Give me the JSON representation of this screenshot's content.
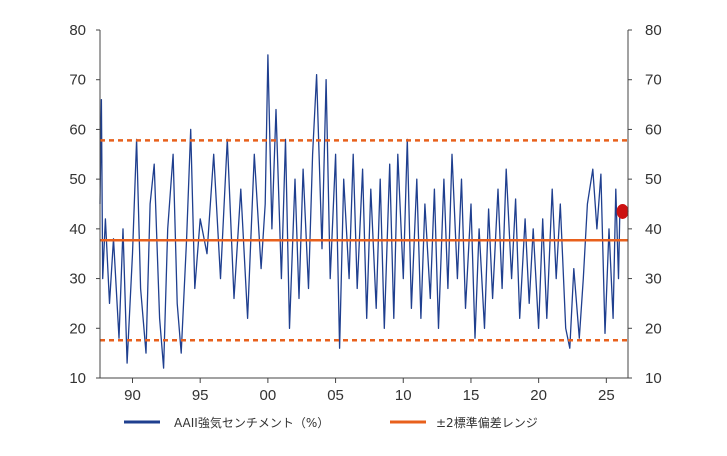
{
  "chart_data": {
    "type": "line",
    "title": "",
    "xlabel": "",
    "ylabel": "",
    "x_range": [
      1987.6,
      2026.6
    ],
    "ylim": [
      10,
      80
    ],
    "y_ticks": [
      10,
      20,
      30,
      40,
      50,
      60,
      70,
      80
    ],
    "y_tick_labels": [
      "10",
      "20",
      "30",
      "40",
      "50",
      "60",
      "70",
      "80"
    ],
    "x_ticks": [
      1990,
      1995,
      2000,
      2005,
      2010,
      2015,
      2020,
      2025
    ],
    "x_tick_labels": [
      "90",
      "95",
      "00",
      "05",
      "10",
      "15",
      "20",
      "25"
    ],
    "grid": false,
    "legend_position": "bottom",
    "legend": [
      "AAII強気センチメント（%）",
      "±2標準偏差レンジ"
    ],
    "series": [
      {
        "name": "AAII強気センチメント（%）",
        "color": "#1f3f8f",
        "points": [
          [
            1987.6,
            45
          ],
          [
            1987.7,
            66
          ],
          [
            1987.8,
            30
          ],
          [
            1988.0,
            42
          ],
          [
            1988.3,
            25
          ],
          [
            1988.6,
            38
          ],
          [
            1989.0,
            18
          ],
          [
            1989.3,
            40
          ],
          [
            1989.6,
            13
          ],
          [
            1990.0,
            35
          ],
          [
            1990.3,
            58
          ],
          [
            1990.6,
            28
          ],
          [
            1991.0,
            15
          ],
          [
            1991.3,
            45
          ],
          [
            1991.6,
            53
          ],
          [
            1992.0,
            22
          ],
          [
            1992.3,
            12
          ],
          [
            1992.6,
            40
          ],
          [
            1993.0,
            55
          ],
          [
            1993.3,
            25
          ],
          [
            1993.6,
            15
          ],
          [
            1994.0,
            38
          ],
          [
            1994.3,
            60
          ],
          [
            1994.6,
            28
          ],
          [
            1995.0,
            42
          ],
          [
            1995.5,
            35
          ],
          [
            1996.0,
            55
          ],
          [
            1996.5,
            30
          ],
          [
            1997.0,
            58
          ],
          [
            1997.5,
            26
          ],
          [
            1998.0,
            48
          ],
          [
            1998.5,
            22
          ],
          [
            1999.0,
            55
          ],
          [
            1999.5,
            32
          ],
          [
            1999.8,
            45
          ],
          [
            2000.0,
            75
          ],
          [
            2000.3,
            40
          ],
          [
            2000.6,
            64
          ],
          [
            2001.0,
            30
          ],
          [
            2001.3,
            58
          ],
          [
            2001.6,
            20
          ],
          [
            2002.0,
            50
          ],
          [
            2002.3,
            26
          ],
          [
            2002.6,
            52
          ],
          [
            2003.0,
            28
          ],
          [
            2003.3,
            55
          ],
          [
            2003.6,
            71
          ],
          [
            2004.0,
            36
          ],
          [
            2004.3,
            70
          ],
          [
            2004.6,
            30
          ],
          [
            2005.0,
            55
          ],
          [
            2005.3,
            16
          ],
          [
            2005.6,
            50
          ],
          [
            2006.0,
            30
          ],
          [
            2006.3,
            55
          ],
          [
            2006.6,
            28
          ],
          [
            2007.0,
            52
          ],
          [
            2007.3,
            22
          ],
          [
            2007.6,
            48
          ],
          [
            2008.0,
            24
          ],
          [
            2008.3,
            50
          ],
          [
            2008.6,
            20
          ],
          [
            2009.0,
            53
          ],
          [
            2009.3,
            22
          ],
          [
            2009.6,
            55
          ],
          [
            2010.0,
            30
          ],
          [
            2010.3,
            58
          ],
          [
            2010.6,
            24
          ],
          [
            2011.0,
            50
          ],
          [
            2011.3,
            22
          ],
          [
            2011.6,
            45
          ],
          [
            2012.0,
            26
          ],
          [
            2012.3,
            48
          ],
          [
            2012.6,
            20
          ],
          [
            2013.0,
            50
          ],
          [
            2013.3,
            28
          ],
          [
            2013.6,
            55
          ],
          [
            2014.0,
            30
          ],
          [
            2014.3,
            50
          ],
          [
            2014.6,
            24
          ],
          [
            2015.0,
            45
          ],
          [
            2015.3,
            18
          ],
          [
            2015.6,
            40
          ],
          [
            2016.0,
            20
          ],
          [
            2016.3,
            44
          ],
          [
            2016.6,
            26
          ],
          [
            2017.0,
            48
          ],
          [
            2017.3,
            28
          ],
          [
            2017.6,
            52
          ],
          [
            2018.0,
            30
          ],
          [
            2018.3,
            46
          ],
          [
            2018.6,
            22
          ],
          [
            2019.0,
            42
          ],
          [
            2019.3,
            25
          ],
          [
            2019.6,
            40
          ],
          [
            2020.0,
            20
          ],
          [
            2020.3,
            42
          ],
          [
            2020.6,
            22
          ],
          [
            2021.0,
            48
          ],
          [
            2021.3,
            30
          ],
          [
            2021.6,
            45
          ],
          [
            2022.0,
            20
          ],
          [
            2022.3,
            16
          ],
          [
            2022.6,
            32
          ],
          [
            2023.0,
            18
          ],
          [
            2023.3,
            30
          ],
          [
            2023.6,
            45
          ],
          [
            2024.0,
            52
          ],
          [
            2024.3,
            40
          ],
          [
            2024.6,
            51
          ],
          [
            2024.9,
            19
          ],
          [
            2025.2,
            40
          ],
          [
            2025.5,
            22
          ],
          [
            2025.7,
            48
          ],
          [
            2025.9,
            30
          ],
          [
            2026.0,
            44
          ]
        ]
      },
      {
        "name": "±2標準偏差レンジ",
        "color": "#e8601c",
        "style": "dashed",
        "value": 57.8
      },
      {
        "name": "",
        "color": "#e8601c",
        "style": "solid",
        "value": 37.7
      },
      {
        "name": "",
        "color": "#e8601c",
        "style": "dashed",
        "value": 17.6
      }
    ],
    "latest_point": {
      "x": 2026.2,
      "y": 43.5,
      "color": "#cc1111"
    }
  }
}
